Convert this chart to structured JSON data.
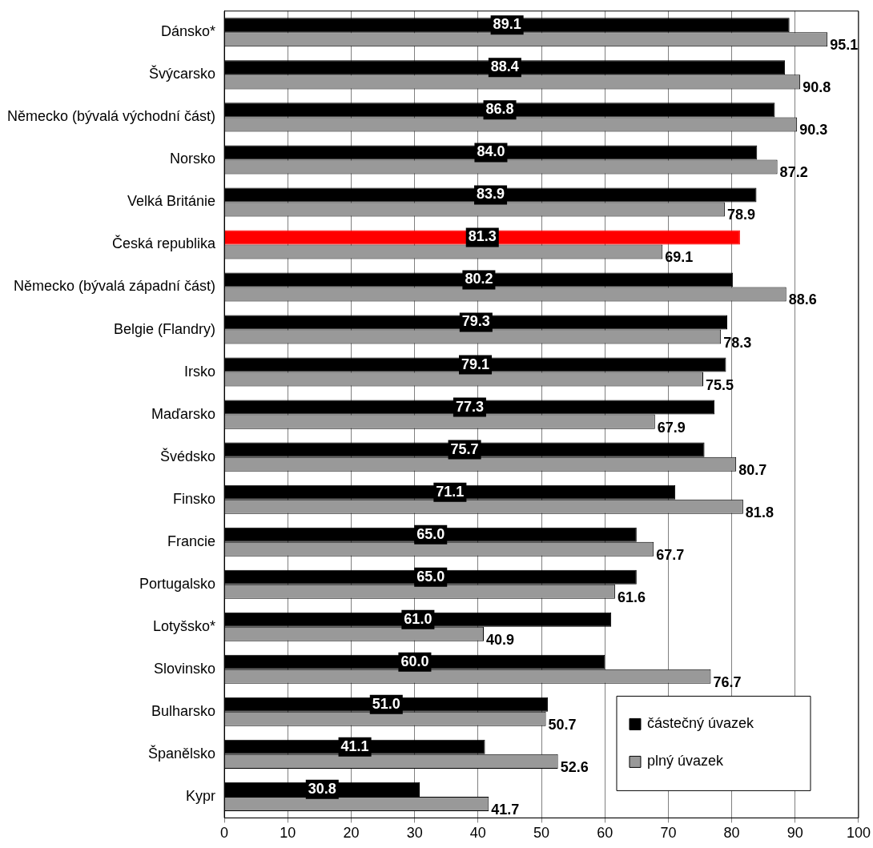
{
  "chart_data": {
    "type": "bar",
    "orientation": "horizontal",
    "categories": [
      "Dánsko*",
      "Švýcarsko",
      "Německo (bývalá východní část)",
      "Norsko",
      "Velká Británie",
      "Česká republika",
      "Německo (bývalá západní část)",
      "Belgie (Flandry)",
      "Irsko",
      "Maďarsko",
      "Švédsko",
      "Finsko",
      "Francie",
      "Portugalsko",
      "Lotyšsko*",
      "Slovinsko",
      "Bulharsko",
      "Španělsko",
      "Kypr"
    ],
    "series": [
      {
        "name": "částečný úvazek",
        "color": "#000000",
        "colors": [
          "#000000",
          "#000000",
          "#000000",
          "#000000",
          "#000000",
          "#ff0000",
          "#000000",
          "#000000",
          "#000000",
          "#000000",
          "#000000",
          "#000000",
          "#000000",
          "#000000",
          "#000000",
          "#000000",
          "#000000",
          "#000000",
          "#000000"
        ],
        "values": [
          89.1,
          88.4,
          86.8,
          84,
          83.9,
          81.3,
          80.2,
          79.3,
          79.1,
          77.3,
          75.7,
          71.1,
          65,
          65,
          61,
          60,
          51,
          41.1,
          30.8
        ],
        "value_labels": [
          "89.1",
          "88.4",
          "86.8",
          "84.0",
          "83.9",
          "81.3",
          "80.2",
          "79.3",
          "79.1",
          "77.3",
          "75.7",
          "71.1",
          "65.0",
          "65.0",
          "61.0",
          "60.0",
          "51.0",
          "41.1",
          "30.8"
        ]
      },
      {
        "name": "plný úvazek",
        "color": "#999999",
        "values": [
          95.1,
          90.8,
          90.3,
          87.2,
          78.9,
          69.1,
          88.6,
          78.3,
          75.5,
          67.9,
          80.7,
          81.8,
          67.7,
          61.6,
          40.9,
          76.7,
          50.7,
          52.6,
          41.7
        ],
        "value_labels": [
          "95.1",
          "90.8",
          "90.3",
          "87.2",
          "78.9",
          "69.1",
          "88.6",
          "78.3",
          "75.5",
          "67.9",
          "80.7",
          "81.8",
          "67.7",
          "61.6",
          "40.9",
          "76.7",
          "50.7",
          "52.6",
          "41.7"
        ]
      }
    ],
    "xlim": [
      0,
      100
    ],
    "xticks": [
      0,
      10,
      20,
      30,
      40,
      50,
      60,
      70,
      80,
      90,
      100
    ],
    "grid": "x",
    "legend": "bottom right"
  }
}
